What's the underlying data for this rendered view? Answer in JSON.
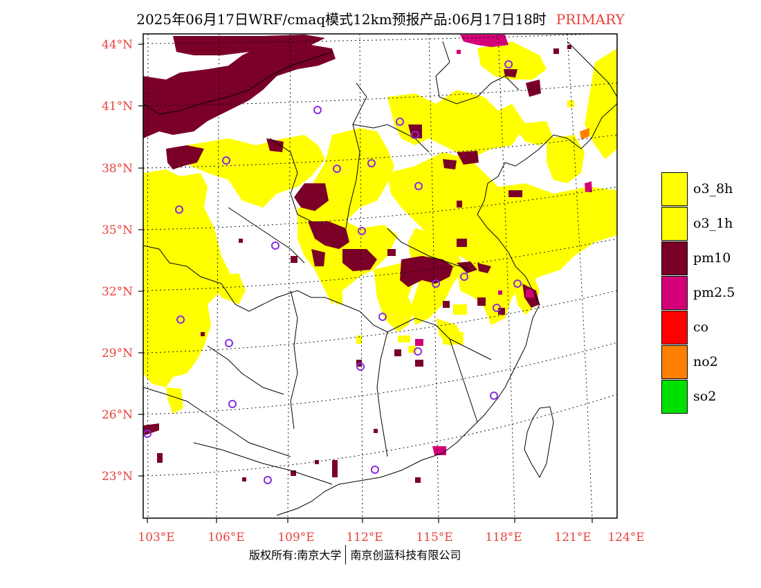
{
  "header": {
    "title": "2025年06月17日WRF/cmaq模式12km预报产品:06月17日18时",
    "mode_label": "PRIMARY"
  },
  "axes": {
    "lat_labels": [
      "44°N",
      "41°N",
      "38°N",
      "35°N",
      "32°N",
      "29°N",
      "26°N",
      "23°N"
    ],
    "lon_labels": [
      "103°E",
      "106°E",
      "109°E",
      "112°E",
      "115°E",
      "118°E",
      "121°E",
      "124°E"
    ]
  },
  "legend": {
    "items": [
      {
        "label": "o3_8h",
        "color": "#ffff00"
      },
      {
        "label": "o3_1h",
        "color": "#ffff00"
      },
      {
        "label": "pm10",
        "color": "#7a0028"
      },
      {
        "label": "pm2.5",
        "color": "#d40078"
      },
      {
        "label": "co",
        "color": "#ff0000"
      },
      {
        "label": "no2",
        "color": "#ff8000"
      },
      {
        "label": "so2",
        "color": "#00e000"
      }
    ]
  },
  "footer": {
    "left": "版权所有:南京大学",
    "right": "南京创蓝科技有限公司"
  },
  "colors": {
    "o3": "#ffff00",
    "pm10": "#7a0028",
    "pm25": "#d40078",
    "no2": "#ff8000",
    "station": "#8a2be2",
    "label": "#e8413a"
  }
}
